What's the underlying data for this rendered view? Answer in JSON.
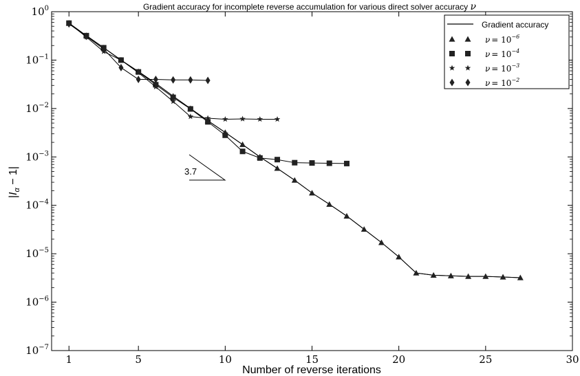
{
  "chart_data": {
    "type": "line",
    "title": "Gradient accuracy for incomplete reverse accumulation for various direct solver accuracy ν",
    "xlabel": "Number of reverse iterations",
    "ylabel": "|I_α − 1|",
    "xlim": [
      0,
      30
    ],
    "ylim": [
      1e-07,
      1
    ],
    "yscale": "log",
    "grid": false,
    "legend_position": "top-right",
    "x_ticks": [
      1,
      5,
      10,
      15,
      20,
      25,
      30
    ],
    "y_ticks": [
      {
        "value": 1,
        "mantissa": "10",
        "exp": "0"
      },
      {
        "value": 0.1,
        "mantissa": "10",
        "exp": "−1"
      },
      {
        "value": 0.01,
        "mantissa": "10",
        "exp": "−2"
      },
      {
        "value": 0.001,
        "mantissa": "10",
        "exp": "−3"
      },
      {
        "value": 0.0001,
        "mantissa": "10",
        "exp": "−4"
      },
      {
        "value": 1e-05,
        "mantissa": "10",
        "exp": "−5"
      },
      {
        "value": 1e-06,
        "mantissa": "10",
        "exp": "−6"
      },
      {
        "value": 1e-07,
        "mantissa": "10",
        "exp": "−7"
      }
    ],
    "series": [
      {
        "name": "Gradient accuracy",
        "style": "line",
        "x": [
          1,
          2,
          3,
          4,
          5,
          6,
          7,
          8,
          9,
          10,
          11,
          12,
          13,
          14,
          15,
          16,
          17,
          18,
          19,
          20,
          21,
          22,
          23,
          24,
          25,
          26,
          27
        ],
        "values": [
          0.58,
          0.32,
          0.18,
          0.1,
          0.058,
          0.033,
          0.018,
          0.01,
          0.0056,
          0.0032,
          0.0018,
          0.001,
          0.00058,
          0.00033,
          0.00018,
          0.000105,
          6e-05,
          3.2e-05,
          1.7e-05,
          8.6e-06,
          4e-06,
          3.6e-06,
          3.5e-06,
          3.4e-06,
          3.4e-06,
          3.3e-06,
          3.2e-06
        ]
      },
      {
        "name": "ν = 10^−6",
        "legend_label": {
          "prefix": "ν",
          "mantissa": "= 10",
          "exp": "−6"
        },
        "marker": "triangle",
        "x": [
          1,
          2,
          3,
          4,
          5,
          6,
          7,
          8,
          9,
          10,
          11,
          12,
          13,
          14,
          15,
          16,
          17,
          18,
          19,
          20,
          21,
          22,
          23,
          24,
          25,
          26,
          27
        ],
        "values": [
          0.58,
          0.32,
          0.18,
          0.1,
          0.058,
          0.033,
          0.018,
          0.01,
          0.0056,
          0.0032,
          0.0018,
          0.001,
          0.00058,
          0.00033,
          0.00018,
          0.000105,
          6e-05,
          3.2e-05,
          1.7e-05,
          8.6e-06,
          4e-06,
          3.6e-06,
          3.5e-06,
          3.4e-06,
          3.4e-06,
          3.3e-06,
          3.2e-06
        ]
      },
      {
        "name": "ν = 10^−4",
        "legend_label": {
          "prefix": "ν",
          "mantissa": "= 10",
          "exp": "−4"
        },
        "marker": "square",
        "x": [
          1,
          2,
          3,
          4,
          5,
          6,
          7,
          8,
          9,
          10,
          11,
          12,
          13,
          14,
          15,
          16,
          17
        ],
        "values": [
          0.58,
          0.32,
          0.18,
          0.1,
          0.057,
          0.031,
          0.017,
          0.0098,
          0.0053,
          0.0028,
          0.0013,
          0.00095,
          0.00088,
          0.00076,
          0.00075,
          0.00074,
          0.00073
        ]
      },
      {
        "name": "ν = 10^−3",
        "legend_label": {
          "prefix": "ν",
          "mantissa": "= 10",
          "exp": "−3"
        },
        "marker": "star",
        "x": [
          1,
          2,
          3,
          4,
          5,
          6,
          7,
          8,
          9,
          10,
          11,
          12,
          13
        ],
        "values": [
          0.58,
          0.3,
          0.15,
          0.1,
          0.055,
          0.028,
          0.014,
          0.0068,
          0.0063,
          0.006,
          0.0061,
          0.006,
          0.006
        ]
      },
      {
        "name": "ν = 10^−2",
        "legend_label": {
          "prefix": "ν",
          "mantissa": "= 10",
          "exp": "−2"
        },
        "marker": "diamond",
        "x": [
          1,
          2,
          3,
          4,
          5,
          6,
          7,
          8,
          9
        ],
        "values": [
          0.56,
          0.31,
          0.17,
          0.07,
          0.04,
          0.04,
          0.039,
          0.039,
          0.038
        ]
      }
    ],
    "annotation": {
      "text": "3.7"
    }
  }
}
